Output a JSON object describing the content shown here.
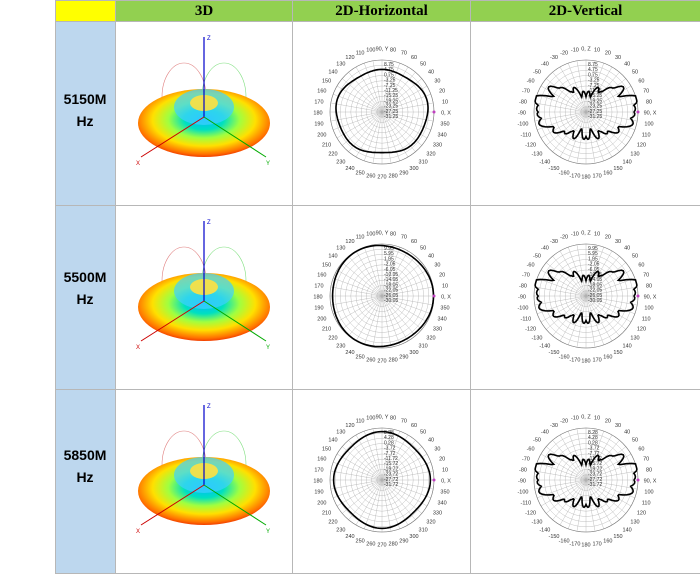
{
  "table": {
    "corner": "",
    "headers": [
      "3D",
      "2D-Horizontal",
      "2D-Vertical"
    ],
    "rows": [
      {
        "freq": "5150M\nHz"
      },
      {
        "freq": "5500M\nHz"
      },
      {
        "freq": "5850M\nHz"
      }
    ]
  },
  "colors": {
    "header_bg": "#92d050",
    "corner_bg": "#ffff00",
    "freq_bg": "#bdd7ee",
    "pattern_line": "#000000",
    "grid_line": "#b0b0b0"
  },
  "chart_data": [
    {
      "type": "polar",
      "panel": "2D-Horizontal",
      "frequency": "5150M Hz",
      "angle_labels": [
        "100",
        "90",
        "80",
        "110",
        "70",
        "120",
        "60",
        "130",
        "50",
        "140",
        "40",
        "150",
        "30",
        "160",
        "20",
        "170",
        "10",
        "180",
        "0",
        "190",
        "350",
        "200",
        "340",
        "210",
        "330",
        "220",
        "320",
        "230",
        "310",
        "240",
        "300",
        "250",
        "290",
        "260",
        "280",
        "270"
      ],
      "angle_label_text": [
        "100 90 Y 80",
        "260 270 280"
      ],
      "radial_ticks": [
        8.75,
        4.75,
        0.75,
        -3.25,
        -7.25,
        -11.25,
        -15.25,
        -19.25,
        -23.25,
        -27.25,
        -31.25
      ],
      "pattern": "near-omnidirectional",
      "gain_db_approx": -7.25
    },
    {
      "type": "polar",
      "panel": "2D-Vertical",
      "frequency": "5150M Hz",
      "angle_labels": [
        "-10",
        "0",
        "10",
        "-20",
        "20",
        "-30",
        "30",
        "-40",
        "40",
        "-50",
        "50",
        "-60",
        "60",
        "-70",
        "70",
        "-80",
        "80",
        "-90",
        "90",
        "-100",
        "100",
        "-110",
        "110",
        "-120",
        "120",
        "-130",
        "130",
        "-140",
        "140",
        "-150",
        "150",
        "-160",
        "160",
        "-170",
        "170",
        "180"
      ],
      "radial_ticks": [
        8.75,
        4.75,
        0.75,
        -3.25,
        -7.25,
        -11.25,
        -15.25,
        -19.25,
        -23.25,
        -27.25,
        -31.25
      ],
      "pattern": "multi-lobed, strong at ±90 deg"
    },
    {
      "type": "polar",
      "panel": "2D-Horizontal",
      "frequency": "5500M Hz",
      "radial_ticks": [
        9.95,
        5.95,
        1.95,
        -2.05,
        -6.05,
        -10.05,
        -14.05,
        -18.05,
        -22.05,
        -26.05,
        -30.05
      ],
      "pattern": "near-omnidirectional",
      "gain_db_approx": 9.95
    },
    {
      "type": "polar",
      "panel": "2D-Vertical",
      "frequency": "5500M Hz",
      "radial_ticks": [
        9.95,
        5.95,
        1.95,
        -2.05,
        -6.05,
        -10.05,
        -14.05,
        -18.05,
        -22.05,
        -26.05,
        -30.05
      ],
      "pattern": "multi-lobed, strong at ±90 deg"
    },
    {
      "type": "polar",
      "panel": "2D-Horizontal",
      "frequency": "5850M Hz",
      "radial_ticks": [
        8.28,
        4.28,
        0.28,
        -3.72,
        -7.72,
        -11.72,
        -15.72,
        -19.72,
        -23.72,
        -27.72,
        -31.72
      ],
      "pattern": "near-omnidirectional",
      "gain_db_approx": 8.28
    },
    {
      "type": "polar",
      "panel": "2D-Vertical",
      "frequency": "5850M Hz",
      "radial_ticks": [
        8.28,
        4.28,
        0.28,
        -3.72,
        -7.72,
        -11.72,
        -15.72,
        -19.72,
        -23.72,
        -27.72,
        -31.72
      ],
      "pattern": "multi-lobed, strong at ±90 deg"
    }
  ],
  "polar_labels": {
    "horizontal_angles": [
      "0, X",
      "10",
      "20",
      "30",
      "40",
      "50",
      "60",
      "70",
      "80",
      "90, Y",
      "100",
      "110",
      "120",
      "130",
      "140",
      "150",
      "160",
      "170",
      "180",
      "190",
      "200",
      "210",
      "220",
      "230",
      "240",
      "250",
      "260",
      "270",
      "280",
      "290",
      "300",
      "310",
      "320",
      "330",
      "340",
      "350"
    ],
    "vertical_angles": [
      "0, Z",
      "10",
      "20",
      "30",
      "40",
      "50",
      "60",
      "70",
      "80",
      "90, X",
      "100",
      "110",
      "120",
      "130",
      "140",
      "150",
      "160",
      "170",
      "180",
      "-170",
      "-160",
      "-150",
      "-140",
      "-130",
      "-120",
      "-110",
      "-100",
      "-90",
      "-80",
      "-70",
      "-60",
      "-50",
      "-40",
      "-30",
      "-20",
      "-10"
    ]
  },
  "axes3d": {
    "x": "X",
    "y": "Y",
    "z": "Z"
  }
}
